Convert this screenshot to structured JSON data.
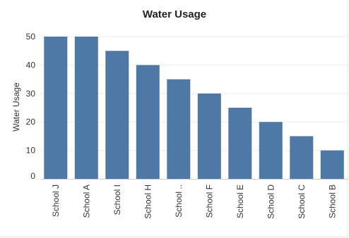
{
  "chart_data": {
    "type": "bar",
    "title": "Water Usage",
    "xlabel": "",
    "ylabel": "Water Usage",
    "categories": [
      "School J",
      "School A",
      "School I",
      "School H",
      "School ..",
      "School F",
      "School E",
      "School D",
      "School C",
      "School B"
    ],
    "values": [
      50,
      50,
      45,
      40,
      35,
      30,
      25,
      20,
      15,
      10
    ],
    "ylim": [
      0,
      52
    ],
    "yticks": [
      0,
      10,
      20,
      30,
      40,
      50
    ],
    "grid": true,
    "legend": "none"
  },
  "colors": {
    "bar": "#4e79a7",
    "grid": "#ececec",
    "axis": "#cccccc"
  }
}
